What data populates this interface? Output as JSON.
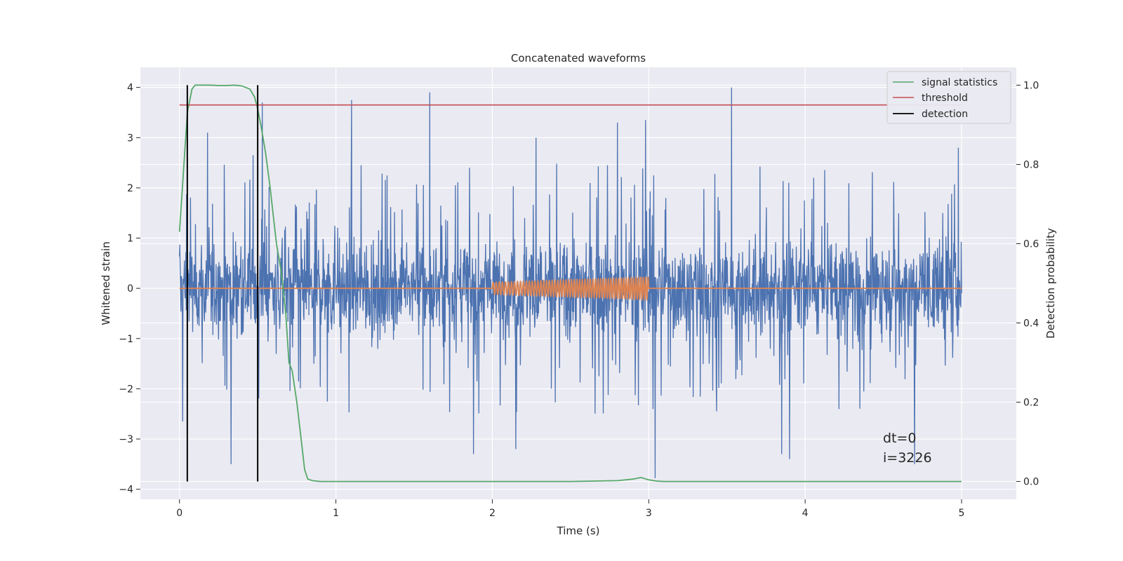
{
  "chart_data": {
    "type": "line",
    "title": "Concatenated waveforms",
    "xlabel": "Time (s)",
    "ylabel": "Whitened strain",
    "ylabel_right": "Detection probability",
    "xlim": [
      -0.25,
      5.35
    ],
    "ylim": [
      -4.2,
      4.4
    ],
    "ylim_right": [
      -0.045,
      1.045
    ],
    "x_ticks": [
      "0",
      "1",
      "2",
      "3",
      "4",
      "5"
    ],
    "y_ticks": [
      "4",
      "3",
      "2",
      "1",
      "0",
      "−1",
      "−2",
      "−3",
      "−4"
    ],
    "y_ticks_right": [
      "1.0",
      "0.8",
      "0.6",
      "0.4",
      "0.2",
      "0.0"
    ],
    "grid": true,
    "legend_position": "top-right",
    "series": [
      {
        "name": "signal statistics",
        "axis": "right",
        "color": "#55a868",
        "x": [
          0.0,
          0.02,
          0.05,
          0.08,
          0.1,
          0.12,
          0.15,
          0.2,
          0.25,
          0.3,
          0.35,
          0.4,
          0.45,
          0.48,
          0.5,
          0.52,
          0.55,
          0.58,
          0.6,
          0.62,
          0.65,
          0.68,
          0.7,
          0.72,
          0.75,
          0.78,
          0.8,
          0.82,
          0.85,
          0.9,
          1.0,
          1.5,
          2.0,
          2.5,
          2.8,
          2.9,
          2.95,
          3.0,
          3.05,
          3.1,
          3.5,
          4.0,
          4.5,
          5.0
        ],
        "y": [
          0.63,
          0.75,
          0.93,
          0.99,
          1.0,
          1.0,
          1.0,
          1.0,
          0.999,
          0.999,
          1.0,
          0.998,
          0.99,
          0.97,
          0.94,
          0.9,
          0.83,
          0.74,
          0.67,
          0.6,
          0.53,
          0.42,
          0.3,
          0.28,
          0.2,
          0.1,
          0.03,
          0.006,
          0.002,
          0.0,
          0.0,
          0.0,
          0.0,
          0.0,
          0.002,
          0.006,
          0.01,
          0.004,
          0.001,
          0.0,
          0.0,
          0.0,
          0.0,
          0.0
        ]
      },
      {
        "name": "threshold",
        "axis": "right",
        "color": "#c44e52",
        "x": [
          0.0,
          5.0
        ],
        "y": [
          0.95,
          0.95
        ]
      },
      {
        "name": "detection",
        "axis": "right",
        "color": "#000000",
        "x": [
          0.05,
          0.05,
          0.5,
          0.5
        ],
        "y": [
          0.0,
          1.0,
          0.0,
          1.0
        ]
      }
    ],
    "noise": {
      "color": "#4c72b0",
      "x_range": [
        0.0,
        5.0
      ],
      "typical_range": [
        -0.7,
        0.9
      ],
      "spikes": [
        {
          "x": 0.18,
          "y": 3.1
        },
        {
          "x": 0.33,
          "y": -3.5
        },
        {
          "x": 0.47,
          "y": 2.65
        },
        {
          "x": 0.53,
          "y": 3.7
        },
        {
          "x": 1.1,
          "y": 3.75
        },
        {
          "x": 1.6,
          "y": 3.9
        },
        {
          "x": 2.28,
          "y": 3.0
        },
        {
          "x": 2.8,
          "y": 3.3
        },
        {
          "x": 2.98,
          "y": 3.35
        },
        {
          "x": 3.04,
          "y": -3.78
        },
        {
          "x": 3.53,
          "y": 4.0
        },
        {
          "x": 3.85,
          "y": -3.3
        },
        {
          "x": 3.9,
          "y": -3.4
        },
        {
          "x": 4.7,
          "y": -3.5
        },
        {
          "x": 4.98,
          "y": 2.8
        },
        {
          "x": 0.02,
          "y": -2.65
        },
        {
          "x": 1.88,
          "y": -3.3
        },
        {
          "x": 2.15,
          "y": -3.2
        }
      ]
    },
    "injected_waveform": {
      "color": "#dd8452",
      "x": [
        2.0,
        3.0
      ],
      "amplitude_start": 0.12,
      "amplitude_end": 0.22,
      "cycles": 50
    }
  },
  "annotation": {
    "line1": "dt=0",
    "line2": "i=3226"
  }
}
